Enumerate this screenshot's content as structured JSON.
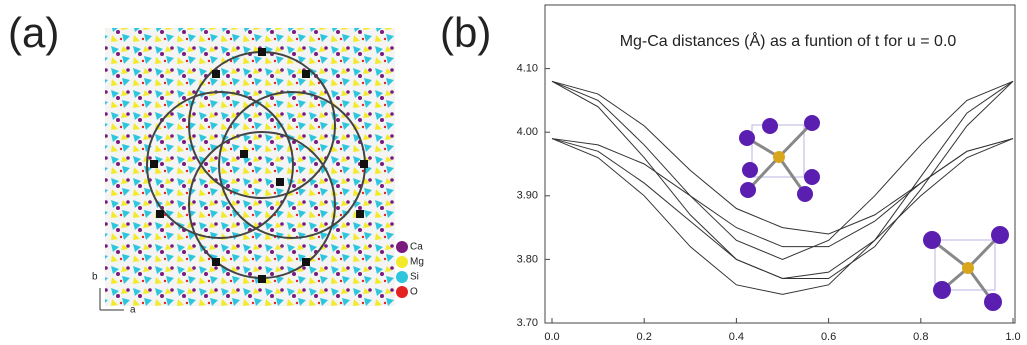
{
  "panel_a": {
    "label": "(a)",
    "axis_b": "b",
    "axis_a": "a",
    "legend": [
      {
        "name": "Ca",
        "color": "#7b1a7e"
      },
      {
        "name": "Mg",
        "color": "#f2ea2a"
      },
      {
        "name": "Si",
        "color": "#2ec6dc"
      },
      {
        "name": "O",
        "color": "#e52222"
      }
    ]
  },
  "panel_b": {
    "label": "(b)"
  },
  "chart_data": {
    "type": "line",
    "title": "Mg-Ca distances (Å) as a funtion of t for u = 0.0",
    "x": [
      0,
      0.1,
      0.2,
      0.3,
      0.4,
      0.5,
      0.6,
      0.7,
      0.8,
      0.9,
      1
    ],
    "series": [
      {
        "name": null,
        "color": "#333333",
        "values": [
          4.08,
          4.04,
          3.96,
          3.87,
          3.8,
          3.77,
          3.78,
          3.83,
          3.9,
          3.96,
          3.99
        ]
      },
      {
        "name": null,
        "color": "#333333",
        "values": [
          4.08,
          4.05,
          3.98,
          3.9,
          3.83,
          3.8,
          3.83,
          3.9,
          3.98,
          4.05,
          4.08
        ]
      },
      {
        "name": null,
        "color": "#333333",
        "values": [
          3.99,
          3.96,
          3.9,
          3.82,
          3.76,
          3.745,
          3.76,
          3.83,
          3.93,
          4.03,
          4.08
        ]
      },
      {
        "name": null,
        "color": "#333333",
        "values": [
          3.99,
          3.98,
          3.95,
          3.9,
          3.85,
          3.82,
          3.82,
          3.86,
          3.92,
          3.97,
          3.99
        ]
      },
      {
        "name": null,
        "color": "#333333",
        "values": [
          4.08,
          4.06,
          4.01,
          3.94,
          3.88,
          3.85,
          3.84,
          3.87,
          3.92,
          3.97,
          3.99
        ]
      },
      {
        "name": null,
        "color": "#333333",
        "values": [
          3.99,
          3.97,
          3.92,
          3.86,
          3.8,
          3.77,
          3.77,
          3.82,
          3.91,
          4.01,
          4.08
        ]
      }
    ],
    "xlim": [
      0,
      1
    ],
    "xticks": [
      {
        "value": 0,
        "label": "0.0"
      },
      0.2,
      0.4,
      0.6,
      0.8,
      {
        "value": 1,
        "label": "1.0"
      }
    ],
    "ylim": [
      3.7,
      4.2
    ],
    "yticks": [
      {
        "value": 3.7,
        "label": "3.70"
      },
      {
        "value": 3.8,
        "label": "3.80"
      },
      {
        "value": 3.9,
        "label": "3.90"
      },
      {
        "value": 4.0,
        "label": "4.00"
      },
      {
        "value": 4.1,
        "label": "4.10"
      }
    ]
  }
}
